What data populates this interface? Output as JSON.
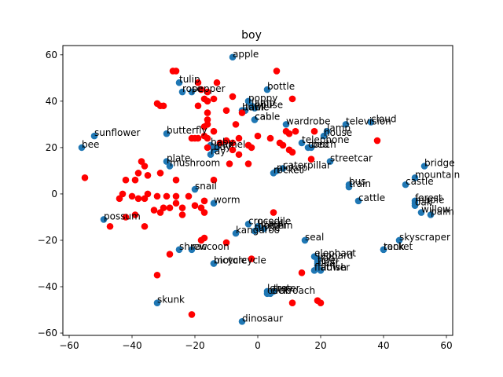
{
  "chart_data": {
    "type": "scatter",
    "title": "boy",
    "xlabel": "",
    "ylabel": "",
    "xlim": [
      -62,
      62
    ],
    "ylim": [
      -61,
      64
    ],
    "xticks": [
      -60,
      -40,
      -20,
      0,
      20,
      40,
      60
    ],
    "yticks": [
      -60,
      -40,
      -20,
      0,
      20,
      40,
      60
    ],
    "grid": false,
    "colors": {
      "labeled": "#1f77b4",
      "highlight": "#ff0000"
    },
    "labeled_points": [
      {
        "label": "apple",
        "x": -8,
        "y": 59
      },
      {
        "label": "tulip",
        "x": -25,
        "y": 48
      },
      {
        "label": "rose",
        "x": -24,
        "y": 44
      },
      {
        "label": "pepper",
        "x": -21,
        "y": 44
      },
      {
        "label": "bottle",
        "x": 3,
        "y": 45
      },
      {
        "label": "poppy",
        "x": -3,
        "y": 40
      },
      {
        "label": "lamp",
        "x": -2,
        "y": 38
      },
      {
        "label": "house",
        "x": -1,
        "y": 37
      },
      {
        "label": "bowl",
        "x": -5,
        "y": 36
      },
      {
        "label": "table",
        "x": -4,
        "y": 36
      },
      {
        "label": "can",
        "x": -1,
        "y": 32
      },
      {
        "label": "cable",
        "x": -1,
        "y": 32
      },
      {
        "label": "cloud",
        "x": 36,
        "y": 31
      },
      {
        "label": "television",
        "x": 28,
        "y": 30
      },
      {
        "label": "wardrobe",
        "x": 9,
        "y": 30
      },
      {
        "label": "lamp",
        "x": 22,
        "y": 27
      },
      {
        "label": "house",
        "x": 21,
        "y": 25
      },
      {
        "label": "telephone",
        "x": 14,
        "y": 22
      },
      {
        "label": "couch",
        "x": 16,
        "y": 20
      },
      {
        "label": "bed",
        "x": 17,
        "y": 20
      },
      {
        "label": "sunflower",
        "x": -52,
        "y": 25
      },
      {
        "label": "bee",
        "x": -56,
        "y": 20
      },
      {
        "label": "butterfly",
        "x": -29,
        "y": 26
      },
      {
        "label": "baby",
        "x": -15,
        "y": 21
      },
      {
        "label": "camel",
        "x": -13,
        "y": 20
      },
      {
        "label": "boy",
        "x": -14,
        "y": 19
      },
      {
        "label": "ray",
        "x": -15,
        "y": 17
      },
      {
        "label": "plate",
        "x": -29,
        "y": 14
      },
      {
        "label": "mushroom",
        "x": -28,
        "y": 12
      },
      {
        "label": "streetcar",
        "x": 23,
        "y": 14
      },
      {
        "label": "caterpillar",
        "x": 8,
        "y": 11
      },
      {
        "label": "pickup",
        "x": 6,
        "y": 10
      },
      {
        "label": "rocket",
        "x": 5,
        "y": 9
      },
      {
        "label": "bridge",
        "x": 53,
        "y": 12
      },
      {
        "label": "mountain",
        "x": 50,
        "y": 7
      },
      {
        "label": "castle",
        "x": 47,
        "y": 4
      },
      {
        "label": "bus",
        "x": 29,
        "y": 4
      },
      {
        "label": "train",
        "x": 29,
        "y": 3
      },
      {
        "label": "cattle",
        "x": 32,
        "y": -3
      },
      {
        "label": "snail",
        "x": -20,
        "y": 2
      },
      {
        "label": "worm",
        "x": -14,
        "y": -4
      },
      {
        "label": "forest",
        "x": 50,
        "y": -3
      },
      {
        "label": "maple",
        "x": 50,
        "y": -4
      },
      {
        "label": "oak",
        "x": 50,
        "y": -5
      },
      {
        "label": "willow",
        "x": 52,
        "y": -8
      },
      {
        "label": "palm",
        "x": 55,
        "y": -9
      },
      {
        "label": "possum",
        "x": -49,
        "y": -11
      },
      {
        "label": "crocodile",
        "x": -3,
        "y": -13
      },
      {
        "label": "lizard",
        "x": 0,
        "y": -14
      },
      {
        "label": "kangaroo",
        "x": -7,
        "y": -17
      },
      {
        "label": "turtle",
        "x": -1,
        "y": -16
      },
      {
        "label": "dolphin",
        "x": 0,
        "y": -15
      },
      {
        "label": "otter",
        "x": 2,
        "y": -15
      },
      {
        "label": "skyscraper",
        "x": 45,
        "y": -20
      },
      {
        "label": "seal",
        "x": 15,
        "y": -20
      },
      {
        "label": "tank",
        "x": 40,
        "y": -24
      },
      {
        "label": "rocket",
        "x": 40,
        "y": -24
      },
      {
        "label": "shrew",
        "x": -25,
        "y": -24
      },
      {
        "label": "raccoon",
        "x": -21,
        "y": -24
      },
      {
        "label": "bicycle",
        "x": -14,
        "y": -30
      },
      {
        "label": "motorcycle",
        "x": -14,
        "y": -30
      },
      {
        "label": "elephant",
        "x": 18,
        "y": -27
      },
      {
        "label": "leopard",
        "x": 19,
        "y": -28
      },
      {
        "label": "lion",
        "x": 19,
        "y": -29
      },
      {
        "label": "tiger",
        "x": 19,
        "y": -30
      },
      {
        "label": "bear",
        "x": 19,
        "y": -31
      },
      {
        "label": "flatfish",
        "x": 18,
        "y": -33
      },
      {
        "label": "flower",
        "x": 20,
        "y": -33
      },
      {
        "label": "skunk",
        "x": -32,
        "y": -47
      },
      {
        "label": "lobster",
        "x": 3,
        "y": -42
      },
      {
        "label": "cockroach",
        "x": 3,
        "y": -43
      },
      {
        "label": "crab",
        "x": 4,
        "y": -43
      },
      {
        "label": "tree",
        "x": 5,
        "y": -42
      },
      {
        "label": "dinosaur",
        "x": -5,
        "y": -55
      }
    ],
    "highlight_points": [
      [
        -27,
        53
      ],
      [
        -26,
        53
      ],
      [
        -19,
        48
      ],
      [
        -13,
        48
      ],
      [
        6,
        53
      ],
      [
        -18,
        45
      ],
      [
        -16,
        44
      ],
      [
        -17,
        41
      ],
      [
        -16,
        40
      ],
      [
        -8,
        42
      ],
      [
        -32,
        39
      ],
      [
        -31,
        38
      ],
      [
        -30,
        38
      ],
      [
        -19,
        38
      ],
      [
        -14,
        41
      ],
      [
        11,
        41
      ],
      [
        -16,
        35
      ],
      [
        -10,
        36
      ],
      [
        -5,
        35
      ],
      [
        -7,
        30
      ],
      [
        -16,
        32
      ],
      [
        -16,
        30
      ],
      [
        -17,
        29
      ],
      [
        -14,
        27
      ],
      [
        -17,
        25
      ],
      [
        -21,
        24
      ],
      [
        -20,
        24
      ],
      [
        -19,
        24
      ],
      [
        -16,
        24
      ],
      [
        -12,
        22
      ],
      [
        -10,
        23
      ],
      [
        -8,
        22
      ],
      [
        -6,
        24
      ],
      [
        -3,
        21
      ],
      [
        0,
        25
      ],
      [
        4,
        24
      ],
      [
        8,
        21
      ],
      [
        9,
        27
      ],
      [
        10,
        26
      ],
      [
        12,
        27
      ],
      [
        18,
        27
      ],
      [
        7,
        22
      ],
      [
        10,
        19
      ],
      [
        -16,
        20
      ],
      [
        -8,
        19
      ],
      [
        -2,
        20
      ],
      [
        -6,
        17
      ],
      [
        -9,
        13
      ],
      [
        -3,
        13
      ],
      [
        11,
        18
      ],
      [
        17,
        15
      ],
      [
        38,
        23
      ],
      [
        -37,
        14
      ],
      [
        -36,
        12
      ],
      [
        -38,
        9
      ],
      [
        -35,
        8
      ],
      [
        -31,
        9
      ],
      [
        -39,
        6
      ],
      [
        -42,
        6
      ],
      [
        -26,
        6
      ],
      [
        -14,
        6
      ],
      [
        -43,
        0
      ],
      [
        -44,
        -2
      ],
      [
        -40,
        -1
      ],
      [
        -38,
        -2
      ],
      [
        -35,
        0
      ],
      [
        -36,
        -2
      ],
      [
        -32,
        -1
      ],
      [
        -29,
        -1
      ],
      [
        -26,
        -1
      ],
      [
        -22,
        -1
      ],
      [
        -17,
        -3
      ],
      [
        -30,
        -6
      ],
      [
        -26,
        -4
      ],
      [
        -24,
        -6
      ],
      [
        -20,
        -5
      ],
      [
        -18,
        -6
      ],
      [
        -33,
        -7
      ],
      [
        -31,
        -8
      ],
      [
        -28,
        -6
      ],
      [
        -24,
        -9
      ],
      [
        -17,
        -8
      ],
      [
        -39,
        -9
      ],
      [
        -42,
        -10
      ],
      [
        -36,
        -14
      ],
      [
        -47,
        -14
      ],
      [
        -55,
        7
      ],
      [
        -18,
        -20
      ],
      [
        -17,
        -19
      ],
      [
        -10,
        -21
      ],
      [
        5,
        -8
      ],
      [
        -28,
        -26
      ],
      [
        -2,
        -28
      ],
      [
        -32,
        -35
      ],
      [
        14,
        -34
      ],
      [
        11,
        -47
      ],
      [
        19,
        -46
      ],
      [
        20,
        -47
      ],
      [
        -21,
        -52
      ]
    ]
  }
}
